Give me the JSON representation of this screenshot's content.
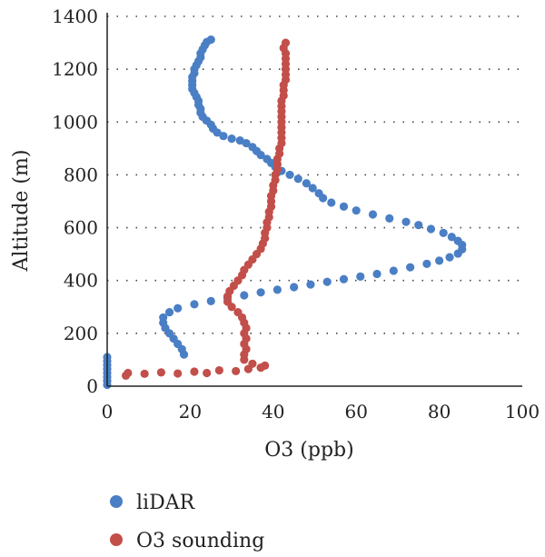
{
  "chart_data": {
    "type": "scatter",
    "xlabel": "O3 (ppb)",
    "ylabel": "Altitude (m)",
    "xlim": [
      0,
      100
    ],
    "ylim": [
      0,
      1400
    ],
    "x_ticks": [
      0,
      20,
      40,
      60,
      80,
      100
    ],
    "y_ticks": [
      0,
      200,
      400,
      600,
      800,
      1000,
      1200,
      1400
    ],
    "grid": "horizontal dotted",
    "legend_position": "bottom-left",
    "series": [
      {
        "name": "liDAR",
        "color": "#4a7fc5",
        "points": [
          [
            0,
            5
          ],
          [
            0,
            20
          ],
          [
            0,
            35
          ],
          [
            0,
            50
          ],
          [
            0,
            65
          ],
          [
            0,
            80
          ],
          [
            0,
            95
          ],
          [
            0,
            110
          ],
          [
            18.5,
            120
          ],
          [
            18,
            140
          ],
          [
            17,
            160
          ],
          [
            16,
            180
          ],
          [
            15,
            200
          ],
          [
            14,
            220
          ],
          [
            13.5,
            240
          ],
          [
            13.5,
            260
          ],
          [
            15,
            280
          ],
          [
            17,
            295
          ],
          [
            21,
            310
          ],
          [
            25,
            322
          ],
          [
            29,
            333
          ],
          [
            33,
            344
          ],
          [
            37,
            355
          ],
          [
            41,
            365
          ],
          [
            45,
            375
          ],
          [
            49,
            385
          ],
          [
            53,
            395
          ],
          [
            57,
            405
          ],
          [
            61,
            415
          ],
          [
            65,
            425
          ],
          [
            69,
            437
          ],
          [
            73,
            450
          ],
          [
            77,
            463
          ],
          [
            80,
            475
          ],
          [
            82.5,
            488
          ],
          [
            84.5,
            502
          ],
          [
            85.5,
            518
          ],
          [
            85.5,
            535
          ],
          [
            84.5,
            550
          ],
          [
            83,
            565
          ],
          [
            81,
            580
          ],
          [
            78,
            595
          ],
          [
            75,
            610
          ],
          [
            72,
            622
          ],
          [
            68,
            635
          ],
          [
            64,
            650
          ],
          [
            60,
            665
          ],
          [
            57,
            680
          ],
          [
            54,
            695
          ],
          [
            52,
            712
          ],
          [
            51,
            730
          ],
          [
            49.5,
            750
          ],
          [
            48,
            768
          ],
          [
            46,
            785
          ],
          [
            44,
            800
          ],
          [
            42,
            815
          ],
          [
            40.5,
            830
          ],
          [
            39.5,
            845
          ],
          [
            38.5,
            860
          ],
          [
            37,
            875
          ],
          [
            36,
            890
          ],
          [
            35,
            905
          ],
          [
            33.5,
            920
          ],
          [
            32,
            930
          ],
          [
            30,
            937
          ],
          [
            28,
            947
          ],
          [
            26.5,
            960
          ],
          [
            25.5,
            975
          ],
          [
            25,
            990
          ],
          [
            24,
            1005
          ],
          [
            23,
            1020
          ],
          [
            22.5,
            1035
          ],
          [
            22.5,
            1050
          ],
          [
            22,
            1065
          ],
          [
            22,
            1080
          ],
          [
            21.5,
            1095
          ],
          [
            21,
            1110
          ],
          [
            20.5,
            1125
          ],
          [
            20.5,
            1140
          ],
          [
            20.5,
            1155
          ],
          [
            20.5,
            1170
          ],
          [
            21,
            1185
          ],
          [
            21,
            1200
          ],
          [
            21.5,
            1215
          ],
          [
            22,
            1230
          ],
          [
            22.5,
            1245
          ],
          [
            22.5,
            1260
          ],
          [
            23,
            1275
          ],
          [
            23.5,
            1290
          ],
          [
            24,
            1303
          ],
          [
            25,
            1312
          ]
        ]
      },
      {
        "name": "O3 sounding",
        "color": "#c24f4a",
        "points": [
          [
            4.5,
            40
          ],
          [
            5,
            50
          ],
          [
            9,
            47
          ],
          [
            13,
            52
          ],
          [
            17,
            48
          ],
          [
            21,
            55
          ],
          [
            24,
            50
          ],
          [
            27,
            60
          ],
          [
            31,
            57
          ],
          [
            34,
            65
          ],
          [
            37,
            70
          ],
          [
            38,
            78
          ],
          [
            35,
            85
          ],
          [
            33,
            100
          ],
          [
            33,
            120
          ],
          [
            33.5,
            140
          ],
          [
            33,
            160
          ],
          [
            33.5,
            180
          ],
          [
            33,
            200
          ],
          [
            33.5,
            220
          ],
          [
            33,
            240
          ],
          [
            32.5,
            260
          ],
          [
            31.5,
            280
          ],
          [
            30,
            300
          ],
          [
            29,
            320
          ],
          [
            29,
            340
          ],
          [
            29.5,
            360
          ],
          [
            30.5,
            380
          ],
          [
            31.5,
            400
          ],
          [
            32.5,
            420
          ],
          [
            33,
            440
          ],
          [
            34,
            460
          ],
          [
            35,
            480
          ],
          [
            36,
            500
          ],
          [
            37,
            520
          ],
          [
            37.5,
            540
          ],
          [
            38,
            560
          ],
          [
            38,
            580
          ],
          [
            38.5,
            600
          ],
          [
            38.5,
            620
          ],
          [
            39,
            640
          ],
          [
            39,
            660
          ],
          [
            39.5,
            680
          ],
          [
            39.5,
            700
          ],
          [
            39.5,
            720
          ],
          [
            40,
            740
          ],
          [
            40,
            760
          ],
          [
            40.5,
            780
          ],
          [
            40.5,
            800
          ],
          [
            41,
            820
          ],
          [
            41,
            840
          ],
          [
            41,
            860
          ],
          [
            41.5,
            880
          ],
          [
            41.5,
            900
          ],
          [
            42,
            920
          ],
          [
            42,
            940
          ],
          [
            42,
            960
          ],
          [
            42,
            980
          ],
          [
            42,
            1000
          ],
          [
            42,
            1020
          ],
          [
            42,
            1040
          ],
          [
            42,
            1060
          ],
          [
            42,
            1080
          ],
          [
            42.5,
            1100
          ],
          [
            42.5,
            1120
          ],
          [
            42.5,
            1140
          ],
          [
            43,
            1160
          ],
          [
            43,
            1180
          ],
          [
            43,
            1200
          ],
          [
            43,
            1220
          ],
          [
            43,
            1240
          ],
          [
            43,
            1260
          ],
          [
            42.5,
            1280
          ],
          [
            43,
            1300
          ]
        ]
      }
    ]
  }
}
